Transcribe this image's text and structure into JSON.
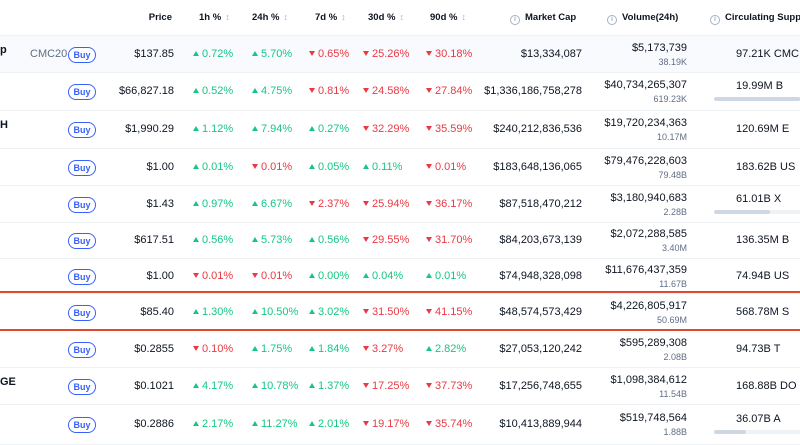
{
  "columns": {
    "price": "Price",
    "h1": "1h %",
    "h24": "24h %",
    "d7": "7d %",
    "d30": "30d %",
    "d90": "90d %",
    "market_cap": "Market Cap",
    "volume": "Volume(24h)",
    "supply": "Circulating Supply"
  },
  "buy_label": "Buy",
  "rows": [
    {
      "name_frag": "p",
      "symbol": "CMC20",
      "price": "$137.85",
      "h1": "0.72%",
      "h1_dir": "up",
      "h24": "5.70%",
      "h24_dir": "up",
      "d7": "0.65%",
      "d7_dir": "down",
      "d30": "25.26%",
      "d30_dir": "down",
      "d90": "30.18%",
      "d90_dir": "down",
      "mcap": "$13,334,087",
      "vol": "$5,173,739",
      "vol_sub": "38.19K",
      "supply": "97.21K CMC",
      "bar": null
    },
    {
      "name_frag": "",
      "symbol": "",
      "price": "$66,827.18",
      "h1": "0.52%",
      "h1_dir": "up",
      "h24": "4.75%",
      "h24_dir": "up",
      "d7": "0.81%",
      "d7_dir": "down",
      "d30": "24.58%",
      "d30_dir": "down",
      "d90": "27.84%",
      "d90_dir": "down",
      "mcap": "$1,336,186,758,278",
      "vol": "$40,734,265,307",
      "vol_sub": "619.23K",
      "supply": "19.99M B",
      "bar": 0.95
    },
    {
      "name_frag": "H",
      "symbol": "",
      "price": "$1,990.29",
      "h1": "1.12%",
      "h1_dir": "up",
      "h24": "7.94%",
      "h24_dir": "up",
      "d7": "0.27%",
      "d7_dir": "up",
      "d30": "32.29%",
      "d30_dir": "down",
      "d90": "35.59%",
      "d90_dir": "down",
      "mcap": "$240,212,836,536",
      "vol": "$19,720,234,363",
      "vol_sub": "10.17M",
      "supply": "120.69M E",
      "bar": null
    },
    {
      "name_frag": "",
      "symbol": "",
      "price": "$1.00",
      "h1": "0.01%",
      "h1_dir": "up",
      "h24": "0.01%",
      "h24_dir": "down",
      "d7": "0.05%",
      "d7_dir": "up",
      "d30": "0.11%",
      "d30_dir": "up",
      "d90": "0.01%",
      "d90_dir": "down",
      "mcap": "$183,648,136,065",
      "vol": "$79,476,228,603",
      "vol_sub": "79.48B",
      "supply": "183.62B US",
      "bar": null
    },
    {
      "name_frag": "",
      "symbol": "",
      "price": "$1.43",
      "h1": "0.97%",
      "h1_dir": "up",
      "h24": "6.67%",
      "h24_dir": "up",
      "d7": "2.37%",
      "d7_dir": "down",
      "d30": "25.94%",
      "d30_dir": "down",
      "d90": "36.17%",
      "d90_dir": "down",
      "mcap": "$87,518,470,212",
      "vol": "$3,180,940,683",
      "vol_sub": "2.28B",
      "supply": "61.01B X",
      "bar": 0.62
    },
    {
      "name_frag": "",
      "symbol": "",
      "price": "$617.51",
      "h1": "0.56%",
      "h1_dir": "up",
      "h24": "5.73%",
      "h24_dir": "up",
      "d7": "0.56%",
      "d7_dir": "up",
      "d30": "29.55%",
      "d30_dir": "down",
      "d90": "31.70%",
      "d90_dir": "down",
      "mcap": "$84,203,673,139",
      "vol": "$2,072,288,585",
      "vol_sub": "3.40M",
      "supply": "136.35M B",
      "bar": null
    },
    {
      "name_frag": "",
      "symbol": "",
      "price": "$1.00",
      "h1": "0.01%",
      "h1_dir": "down",
      "h24": "0.01%",
      "h24_dir": "down",
      "d7": "0.00%",
      "d7_dir": "up",
      "d30": "0.04%",
      "d30_dir": "up",
      "d90": "0.01%",
      "d90_dir": "up",
      "mcap": "$74,948,328,098",
      "vol": "$11,676,437,359",
      "vol_sub": "11.67B",
      "supply": "74.94B US",
      "bar": null
    },
    {
      "name_frag": "",
      "symbol": "",
      "price": "$85.40",
      "h1": "1.30%",
      "h1_dir": "up",
      "h24": "10.50%",
      "h24_dir": "up",
      "d7": "3.02%",
      "d7_dir": "up",
      "d30": "31.50%",
      "d30_dir": "down",
      "d90": "41.15%",
      "d90_dir": "down",
      "mcap": "$48,574,573,429",
      "vol": "$4,226,805,917",
      "vol_sub": "50.69M",
      "supply": "568.78M S",
      "bar": null
    },
    {
      "name_frag": "",
      "symbol": "",
      "price": "$0.2855",
      "h1": "0.10%",
      "h1_dir": "down",
      "h24": "1.75%",
      "h24_dir": "up",
      "d7": "1.84%",
      "d7_dir": "up",
      "d30": "3.27%",
      "d30_dir": "down",
      "d90": "2.82%",
      "d90_dir": "up",
      "mcap": "$27,053,120,242",
      "vol": "$595,289,308",
      "vol_sub": "2.08B",
      "supply": "94.73B T",
      "bar": null
    },
    {
      "name_frag": "GE",
      "symbol": "",
      "price": "$0.1021",
      "h1": "4.17%",
      "h1_dir": "up",
      "h24": "10.78%",
      "h24_dir": "up",
      "d7": "1.37%",
      "d7_dir": "up",
      "d30": "17.25%",
      "d30_dir": "down",
      "d90": "37.73%",
      "d90_dir": "down",
      "mcap": "$17,256,748,655",
      "vol": "$1,098,384,612",
      "vol_sub": "11.54B",
      "supply": "168.88B DO",
      "bar": null
    },
    {
      "name_frag": "",
      "symbol": "",
      "price": "$0.2886",
      "h1": "2.17%",
      "h1_dir": "up",
      "h24": "11.27%",
      "h24_dir": "up",
      "d7": "2.01%",
      "d7_dir": "up",
      "d30": "19.17%",
      "d30_dir": "down",
      "d90": "35.74%",
      "d90_dir": "down",
      "mcap": "$10,413,889,944",
      "vol": "$519,748,564",
      "vol_sub": "1.88B",
      "supply": "36.07B A",
      "bar": 0.35
    }
  ]
}
